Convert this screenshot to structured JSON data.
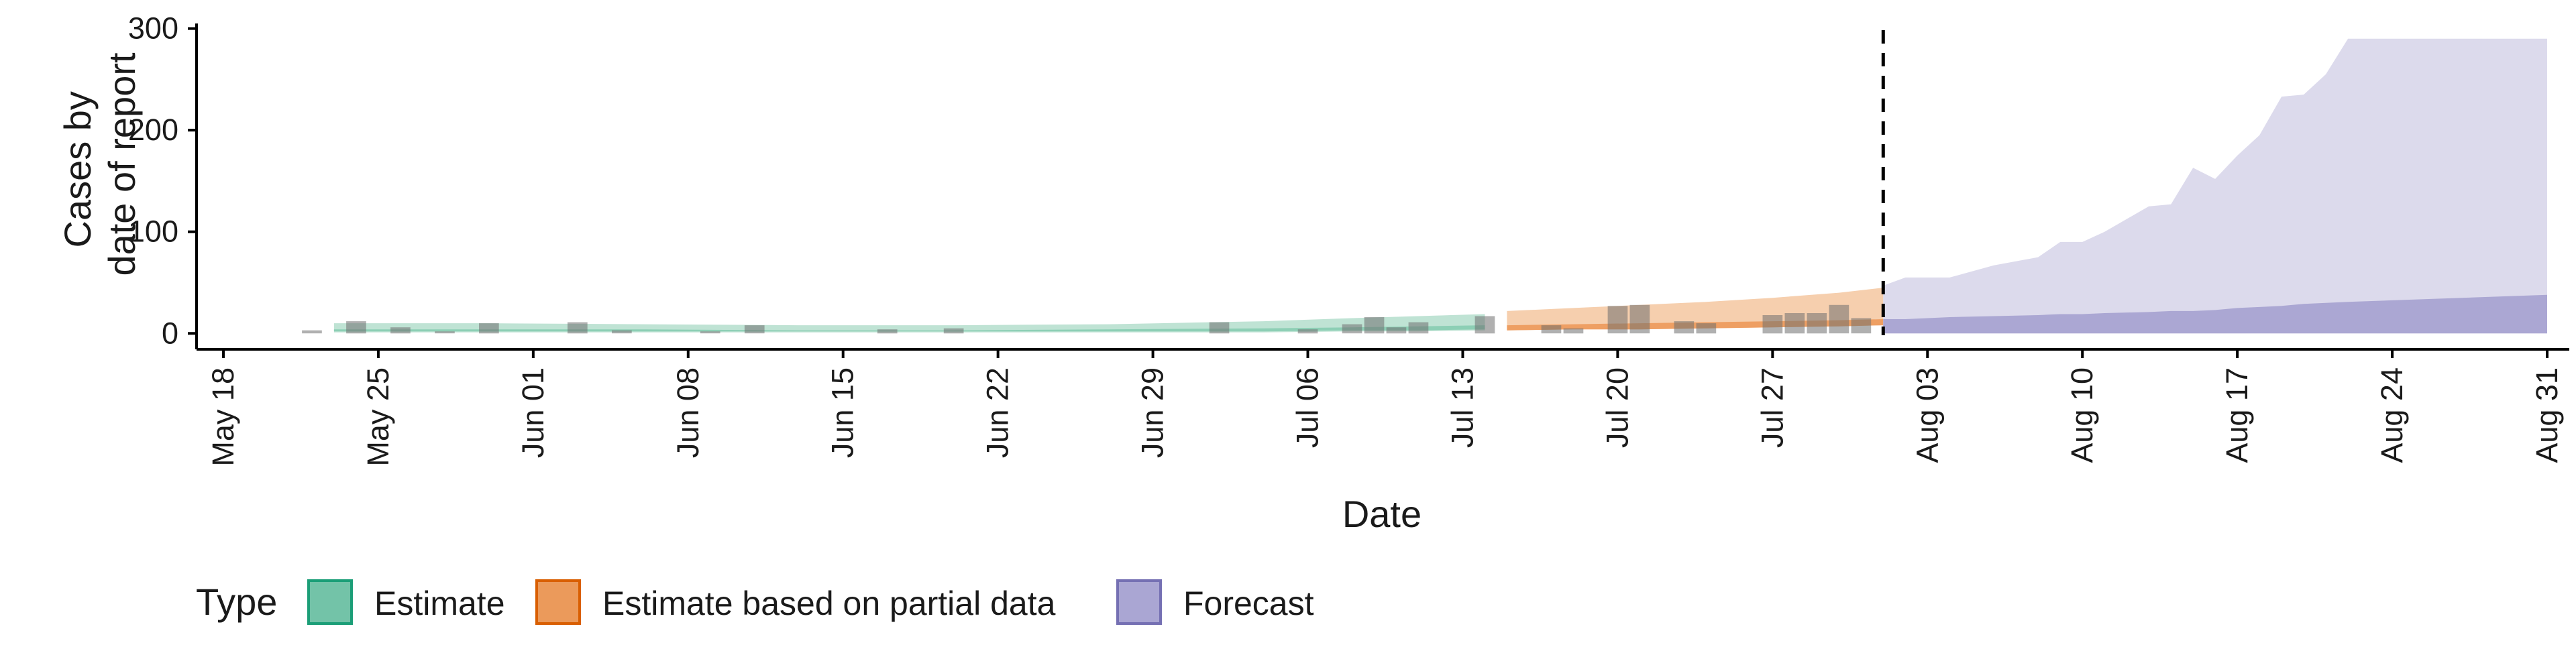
{
  "chart_data": {
    "type": "area",
    "xlabel": "Date",
    "ylabel_lines": [
      "Cases by",
      "date of report"
    ],
    "x_ticks": [
      "May 18",
      "May 25",
      "Jun 01",
      "Jun 08",
      "Jun 15",
      "Jun 22",
      "Jun 29",
      "Jul 06",
      "Jul 13",
      "Jul 20",
      "Jul 27",
      "Aug 03",
      "Aug 10",
      "Aug 17",
      "Aug 24",
      "Aug 31"
    ],
    "x_tick_dates": [
      "2020-05-18",
      "2020-05-25",
      "2020-06-01",
      "2020-06-08",
      "2020-06-15",
      "2020-06-22",
      "2020-06-29",
      "2020-07-06",
      "2020-07-13",
      "2020-07-20",
      "2020-07-27",
      "2020-08-03",
      "2020-08-10",
      "2020-08-17",
      "2020-08-24",
      "2020-08-31"
    ],
    "xlim": [
      "2020-05-17",
      "2020-09-01"
    ],
    "y_ticks": [
      0,
      100,
      200,
      300
    ],
    "ylim": [
      -15,
      305
    ],
    "forecast_date": "2020-08-01",
    "grid": false,
    "legend": {
      "title": "Type",
      "position": "bottom",
      "entries": [
        {
          "label": "Estimate",
          "fill": "#73c3a8",
          "stroke": "#1b9e77"
        },
        {
          "label": "Estimate based on partial data",
          "fill": "#eb9a5b",
          "stroke": "#d95f02"
        },
        {
          "label": "Forecast",
          "fill": "#aaa6d3",
          "stroke": "#7570b3"
        }
      ]
    },
    "colors": {
      "estimate_outer": "#bfe3d4",
      "estimate_inner": "#8dcfb5",
      "partial_outer": "#f6cfae",
      "partial_inner": "#ee9f63",
      "forecast_outer": "#dcdaec",
      "forecast_inner": "#aba7d3",
      "bar": "#6f6f6f",
      "forecast_line": "#000000"
    },
    "series": [
      {
        "type_label": "Estimate",
        "dates": [
          "2020-05-23",
          "2020-05-30",
          "2020-06-06",
          "2020-06-13",
          "2020-06-20",
          "2020-06-27",
          "2020-07-04",
          "2020-07-08",
          "2020-07-11",
          "2020-07-14"
        ],
        "upper": [
          10,
          10,
          9,
          8,
          8,
          9,
          12,
          15,
          17,
          19
        ],
        "lower": [
          1,
          1,
          1,
          1,
          1,
          1,
          1,
          2,
          2,
          3
        ],
        "inner_upper": [
          4,
          4,
          4,
          3,
          3,
          4,
          5,
          6,
          7,
          8
        ],
        "inner_lower": [
          2,
          2,
          2,
          2,
          2,
          2,
          2,
          3,
          3,
          4
        ]
      },
      {
        "type_label": "Estimate based on partial data",
        "dates": [
          "2020-07-15",
          "2020-07-18",
          "2020-07-21",
          "2020-07-24",
          "2020-07-27",
          "2020-07-30",
          "2020-08-01"
        ],
        "upper": [
          22,
          25,
          28,
          31,
          35,
          40,
          45
        ],
        "lower": [
          3,
          4,
          4,
          5,
          6,
          7,
          8
        ],
        "inner_upper": [
          8,
          9,
          10,
          11,
          12,
          13,
          14
        ],
        "inner_lower": [
          3,
          4,
          4,
          5,
          6,
          7,
          8
        ]
      },
      {
        "type_label": "Forecast",
        "dates": [
          "2020-08-01",
          "2020-08-02",
          "2020-08-04",
          "2020-08-06",
          "2020-08-08",
          "2020-08-09",
          "2020-08-10",
          "2020-08-11",
          "2020-08-13",
          "2020-08-14",
          "2020-08-15",
          "2020-08-16",
          "2020-08-17",
          "2020-08-18",
          "2020-08-19",
          "2020-08-20",
          "2020-08-21",
          "2020-08-22",
          "2020-08-31"
        ],
        "upper": [
          47,
          55,
          55,
          67,
          75,
          90,
          90,
          100,
          125,
          127,
          163,
          152,
          175,
          195,
          233,
          235,
          255,
          290,
          290
        ],
        "lower": [
          0,
          0,
          0,
          0,
          0,
          0,
          0,
          0,
          0,
          0,
          0,
          0,
          0,
          0,
          0,
          0,
          0,
          0,
          0
        ],
        "inner_upper": [
          14,
          14,
          16,
          17,
          18,
          19,
          19,
          20,
          21,
          22,
          22,
          23,
          25,
          26,
          27,
          29,
          30,
          31,
          38
        ],
        "inner_lower": [
          0,
          0,
          0,
          0,
          0,
          0,
          0,
          0,
          0,
          0,
          0,
          0,
          0,
          0,
          0,
          0,
          0,
          0,
          0
        ]
      }
    ],
    "reported_cases": [
      {
        "date": "2020-05-22",
        "value": 3
      },
      {
        "date": "2020-05-24",
        "value": 12
      },
      {
        "date": "2020-05-26",
        "value": 6
      },
      {
        "date": "2020-05-28",
        "value": 2
      },
      {
        "date": "2020-05-30",
        "value": 10
      },
      {
        "date": "2020-06-03",
        "value": 11
      },
      {
        "date": "2020-06-05",
        "value": 3
      },
      {
        "date": "2020-06-09",
        "value": 2
      },
      {
        "date": "2020-06-11",
        "value": 8
      },
      {
        "date": "2020-06-17",
        "value": 4
      },
      {
        "date": "2020-06-20",
        "value": 5
      },
      {
        "date": "2020-07-02",
        "value": 11
      },
      {
        "date": "2020-07-06",
        "value": 4
      },
      {
        "date": "2020-07-08",
        "value": 9
      },
      {
        "date": "2020-07-09",
        "value": 16
      },
      {
        "date": "2020-07-10",
        "value": 6
      },
      {
        "date": "2020-07-11",
        "value": 11
      },
      {
        "date": "2020-07-14",
        "value": 17
      },
      {
        "date": "2020-07-17",
        "value": 8
      },
      {
        "date": "2020-07-18",
        "value": 5
      },
      {
        "date": "2020-07-20",
        "value": 27
      },
      {
        "date": "2020-07-21",
        "value": 28
      },
      {
        "date": "2020-07-23",
        "value": 12
      },
      {
        "date": "2020-07-24",
        "value": 10
      },
      {
        "date": "2020-07-27",
        "value": 18
      },
      {
        "date": "2020-07-28",
        "value": 20
      },
      {
        "date": "2020-07-29",
        "value": 20
      },
      {
        "date": "2020-07-30",
        "value": 28
      },
      {
        "date": "2020-07-31",
        "value": 15
      }
    ]
  }
}
